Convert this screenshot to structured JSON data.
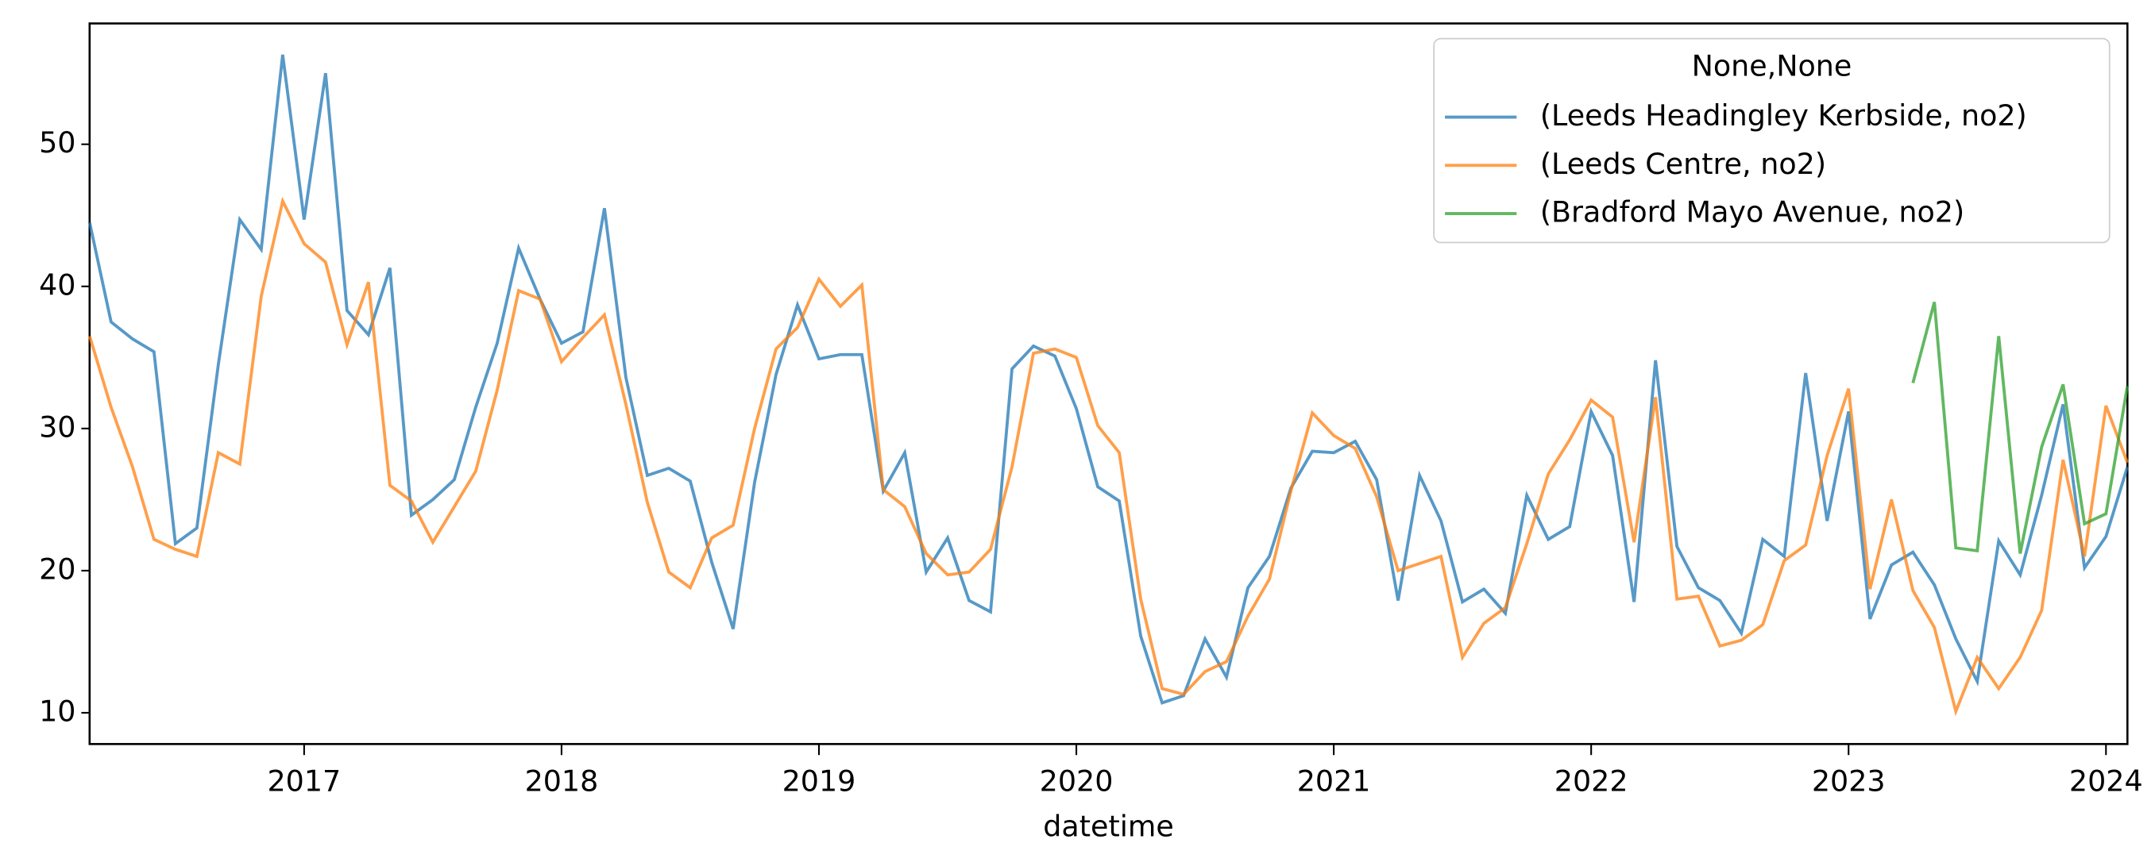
{
  "chart_data": {
    "type": "line",
    "xlabel": "datetime",
    "legend_title": "None,None",
    "legend": "upper right",
    "x": [
      "2016-03",
      "2016-04",
      "2016-05",
      "2016-06",
      "2016-07",
      "2016-08",
      "2016-09",
      "2016-10",
      "2016-11",
      "2016-12",
      "2017-01",
      "2017-02",
      "2017-03",
      "2017-04",
      "2017-05",
      "2017-06",
      "2017-07",
      "2017-08",
      "2017-09",
      "2017-10",
      "2017-11",
      "2017-12",
      "2018-01",
      "2018-02",
      "2018-03",
      "2018-04",
      "2018-05",
      "2018-06",
      "2018-07",
      "2018-08",
      "2018-09",
      "2018-10",
      "2018-11",
      "2018-12",
      "2019-01",
      "2019-02",
      "2019-03",
      "2019-04",
      "2019-05",
      "2019-06",
      "2019-07",
      "2019-08",
      "2019-09",
      "2019-10",
      "2019-11",
      "2019-12",
      "2020-01",
      "2020-02",
      "2020-03",
      "2020-04",
      "2020-05",
      "2020-06",
      "2020-07",
      "2020-08",
      "2020-09",
      "2020-10",
      "2020-11",
      "2020-12",
      "2021-01",
      "2021-02",
      "2021-03",
      "2021-04",
      "2021-05",
      "2021-06",
      "2021-07",
      "2021-08",
      "2021-09",
      "2021-10",
      "2021-11",
      "2021-12",
      "2022-01",
      "2022-02",
      "2022-03",
      "2022-04",
      "2022-05",
      "2022-06",
      "2022-07",
      "2022-08",
      "2022-09",
      "2022-10",
      "2022-11",
      "2022-12",
      "2023-01",
      "2023-02",
      "2023-03",
      "2023-04",
      "2023-05",
      "2023-06",
      "2023-07",
      "2023-08",
      "2023-09",
      "2023-10",
      "2023-11",
      "2023-12",
      "2024-01",
      "2024-02"
    ],
    "series": [
      {
        "name": "(Leeds Headingley Kerbside, no2)",
        "color": "#1f77b4",
        "values": [
          44.5,
          37.5,
          36.3,
          35.4,
          21.9,
          23,
          34.5,
          44.7,
          42.6,
          56.3,
          44.7,
          55,
          38.3,
          36.6,
          41.3,
          23.9,
          25,
          26.4,
          31.5,
          36,
          42.7,
          39.1,
          36,
          36.8,
          45.5,
          33.6,
          26.7,
          27.2,
          26.3,
          20.6,
          15.9,
          26.2,
          33.8,
          38.7,
          34.9,
          35.2,
          35.2,
          25.6,
          28.3,
          19.9,
          22.3,
          17.9,
          17.1,
          34.2,
          35.8,
          35.1,
          31.4,
          25.9,
          24.9,
          15.4,
          10.7,
          11.2,
          15.2,
          12.5,
          18.8,
          21,
          25.8,
          28.4,
          28.3,
          29.1,
          26.4,
          17.9,
          26.7,
          23.5,
          17.8,
          18.7,
          17,
          25.3,
          22.2,
          23.1,
          31.2,
          28.1,
          17.8,
          34.8,
          21.7,
          18.8,
          17.9,
          15.6,
          22.2,
          21,
          33.9,
          23.5,
          31.2,
          16.6,
          20.4,
          21.3,
          19,
          15.2,
          12.2,
          22.1,
          19.7,
          25.3,
          31.7,
          20.2,
          22.4,
          27.3
        ]
      },
      {
        "name": "(Leeds Centre, no2)",
        "color": "#ff7f0e",
        "values": [
          36.5,
          31.5,
          27.3,
          22.2,
          21.5,
          21,
          28.3,
          27.5,
          39.3,
          46,
          43,
          41.7,
          35.9,
          40.3,
          26,
          24.9,
          22,
          24.5,
          27,
          32.7,
          39.7,
          39.1,
          34.7,
          36.4,
          38,
          31.7,
          24.8,
          19.9,
          18.8,
          22.3,
          23.2,
          30,
          35.6,
          37.1,
          40.5,
          38.6,
          40.1,
          25.7,
          24.5,
          21.2,
          19.7,
          19.9,
          21.5,
          27.3,
          35.3,
          35.6,
          35,
          30.2,
          28.3,
          18,
          11.7,
          11.3,
          12.9,
          13.6,
          16.8,
          19.4,
          25.6,
          31.1,
          29.5,
          28.6,
          25.2,
          20,
          20.5,
          21,
          13.9,
          16.3,
          17.4,
          21.9,
          26.8,
          29.2,
          32,
          30.8,
          22,
          32.2,
          18,
          18.2,
          14.7,
          15.1,
          16.2,
          20.7,
          21.8,
          28.1,
          32.8,
          18.7,
          25,
          18.6,
          16,
          10.1,
          13.9,
          11.7,
          13.9,
          17.2,
          27.8,
          21,
          31.6,
          27.6
        ]
      },
      {
        "name": "(Bradford Mayo Avenue, no2)",
        "color": "#2ca02c",
        "values": [
          null,
          null,
          null,
          null,
          null,
          null,
          null,
          null,
          null,
          null,
          null,
          null,
          null,
          null,
          null,
          null,
          null,
          null,
          null,
          null,
          null,
          null,
          null,
          null,
          null,
          null,
          null,
          null,
          null,
          null,
          null,
          null,
          null,
          null,
          null,
          null,
          null,
          null,
          null,
          null,
          null,
          null,
          null,
          null,
          null,
          null,
          null,
          null,
          null,
          null,
          null,
          null,
          null,
          null,
          null,
          null,
          null,
          null,
          null,
          null,
          null,
          null,
          null,
          null,
          null,
          null,
          null,
          null,
          null,
          null,
          null,
          null,
          null,
          null,
          null,
          null,
          null,
          null,
          null,
          null,
          null,
          null,
          null,
          null,
          null,
          33.2,
          38.9,
          21.6,
          21.4,
          36.5,
          21.2,
          28.7,
          33.1,
          23.3,
          24,
          33
        ]
      }
    ],
    "xlim": [
      "2016-03",
      "2024-02"
    ],
    "xticks": [
      {
        "value": "2017-01",
        "label": "2017"
      },
      {
        "value": "2018-01",
        "label": "2018"
      },
      {
        "value": "2019-01",
        "label": "2019"
      },
      {
        "value": "2020-01",
        "label": "2020"
      },
      {
        "value": "2021-01",
        "label": "2021"
      },
      {
        "value": "2022-01",
        "label": "2022"
      },
      {
        "value": "2023-01",
        "label": "2023"
      },
      {
        "value": "2024-01",
        "label": "2024"
      }
    ],
    "ylim": [
      7.8,
      58.5
    ],
    "yticks": [
      10,
      20,
      30,
      40,
      50
    ]
  }
}
